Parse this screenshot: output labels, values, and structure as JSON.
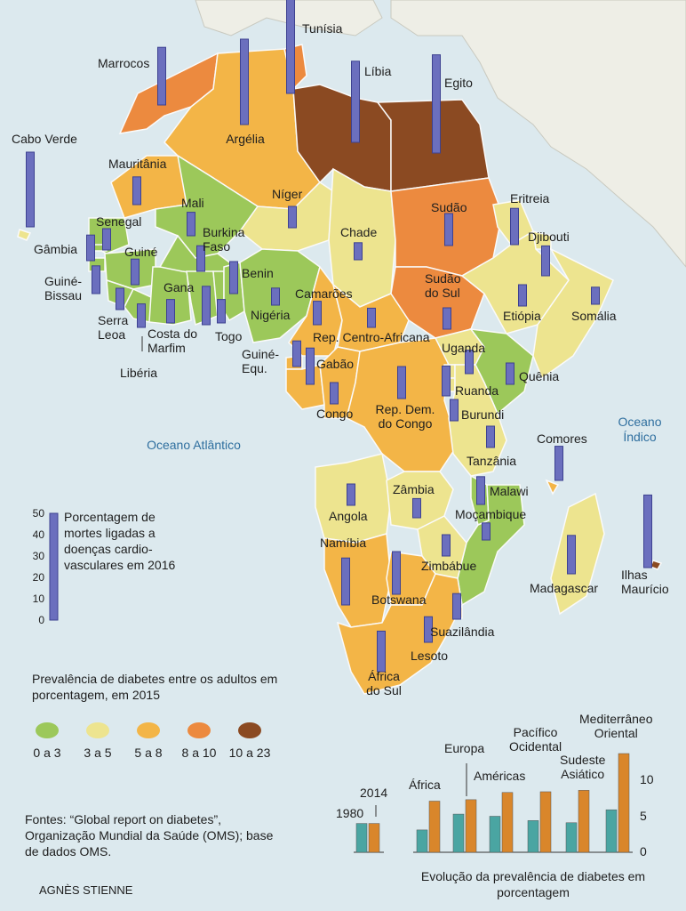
{
  "colors": {
    "ocean": "#dce9ee",
    "land_other": "#eeeee6",
    "bar": "#6b6fbe",
    "bar_edge": "#3d4190",
    "c_0_3": "#9cc85a",
    "c_3_5": "#ede48f",
    "c_5_8": "#f3b547",
    "c_8_10": "#ec8a3f",
    "c_10_23": "#8b4a22",
    "bar_1980": "#4aa5a2",
    "bar_2014": "#d9862b"
  },
  "countries": [
    {
      "name": "Marrocos",
      "cvd": 27,
      "class": "8_10"
    },
    {
      "name": "Argélia",
      "cvd": 40,
      "class": "5_8"
    },
    {
      "name": "Tunísia",
      "cvd": 45,
      "class": "8_10"
    },
    {
      "name": "Líbia",
      "cvd": 38,
      "class": "10_23"
    },
    {
      "name": "Egito",
      "cvd": 46,
      "class": "10_23"
    },
    {
      "name": "Cabo Verde",
      "cvd": 35,
      "class": "3_5"
    },
    {
      "name": "Mauritânia",
      "cvd": 13,
      "class": "5_8"
    },
    {
      "name": "Senegal",
      "cvd": 10,
      "class": "0_3"
    },
    {
      "name": "Gâmbia",
      "cvd": 12,
      "class": "0_3"
    },
    {
      "name": "Guiné-Bissau",
      "cvd": 13,
      "class": "0_3"
    },
    {
      "name": "Guiné",
      "cvd": 12,
      "class": "0_3"
    },
    {
      "name": "Mali",
      "cvd": 11,
      "class": "0_3"
    },
    {
      "name": "Serra Leoa",
      "cvd": 10,
      "class": "0_3"
    },
    {
      "name": "Libéria",
      "cvd": 11,
      "class": "0_3"
    },
    {
      "name": "Costa do Marfim",
      "cvd": 11,
      "class": "0_3"
    },
    {
      "name": "Burkina Faso",
      "cvd": 12,
      "class": "0_3"
    },
    {
      "name": "Gana",
      "cvd": 18,
      "class": "0_3"
    },
    {
      "name": "Togo",
      "cvd": 11,
      "class": "0_3"
    },
    {
      "name": "Benin",
      "cvd": 15,
      "class": "0_3"
    },
    {
      "name": "Níger",
      "cvd": 10,
      "class": "3_5"
    },
    {
      "name": "Nigéria",
      "cvd": 8,
      "class": "0_3"
    },
    {
      "name": "Chade",
      "cvd": 8,
      "class": "3_5"
    },
    {
      "name": "Camarões",
      "cvd": 11,
      "class": "5_8"
    },
    {
      "name": "Rep. Centro-Africana",
      "cvd": 9,
      "class": "5_8"
    },
    {
      "name": "Sudão",
      "cvd": 15,
      "class": "8_10"
    },
    {
      "name": "Sudão do Sul",
      "cvd": 10,
      "class": "8_10"
    },
    {
      "name": "Eritreia",
      "cvd": 17,
      "class": "3_5"
    },
    {
      "name": "Djibouti",
      "cvd": 14,
      "class": "3_5"
    },
    {
      "name": "Etiópia",
      "cvd": 10,
      "class": "3_5"
    },
    {
      "name": "Somália",
      "cvd": 8,
      "class": "3_5"
    },
    {
      "name": "Guiné-Equ.",
      "cvd": 12,
      "class": "5_8"
    },
    {
      "name": "Gabão",
      "cvd": 17,
      "class": "5_8"
    },
    {
      "name": "Congo",
      "cvd": 10,
      "class": "5_8"
    },
    {
      "name": "Rep. Dem. do Congo",
      "cvd": 15,
      "class": "5_8"
    },
    {
      "name": "Uganda",
      "cvd": 11,
      "class": "3_5"
    },
    {
      "name": "Quênia",
      "cvd": 10,
      "class": "0_3"
    },
    {
      "name": "Ruanda",
      "cvd": 14,
      "class": "3_5"
    },
    {
      "name": "Burundi",
      "cvd": 10,
      "class": "3_5"
    },
    {
      "name": "Tanzânia",
      "cvd": 10,
      "class": "3_5"
    },
    {
      "name": "Comores",
      "cvd": 16,
      "class": "5_8"
    },
    {
      "name": "Angola",
      "cvd": 10,
      "class": "3_5"
    },
    {
      "name": "Zâmbia",
      "cvd": 9,
      "class": "3_5"
    },
    {
      "name": "Malawi",
      "cvd": 13,
      "class": "0_3"
    },
    {
      "name": "Moçambique",
      "cvd": 8,
      "class": "0_3"
    },
    {
      "name": "Namíbia",
      "cvd": 22,
      "class": "5_8"
    },
    {
      "name": "Zimbábue",
      "cvd": 10,
      "class": "3_5"
    },
    {
      "name": "Botswana",
      "cvd": 20,
      "class": "5_8"
    },
    {
      "name": "Madagascar",
      "cvd": 18,
      "class": "3_5"
    },
    {
      "name": "Ilhas Maurício",
      "cvd": 34,
      "class": "10_23"
    },
    {
      "name": "Suazilândia",
      "cvd": 12,
      "class": "5_8"
    },
    {
      "name": "Lesoto",
      "cvd": 12,
      "class": "5_8"
    },
    {
      "name": "África do Sul",
      "cvd": 19,
      "class": "5_8"
    }
  ],
  "oceans": {
    "atlantico": "Oceano Atlântico",
    "indico": "Oceano Índico"
  },
  "cvd_legend": {
    "title": "Porcentagem de mortes ligadas a doenças cardio-vasculares em 2016",
    "ticks": [
      "50",
      "40",
      "30",
      "20",
      "10",
      "0"
    ]
  },
  "diabetes_legend": {
    "title": "Prevalência de diabetes entre os adultos em porcentagem, em 2015",
    "classes": [
      {
        "label": "0 a 3",
        "color": "#9cc85a"
      },
      {
        "label": "3 a 5",
        "color": "#ede48f"
      },
      {
        "label": "5 a 8",
        "color": "#f3b547"
      },
      {
        "label": "8 a 10",
        "color": "#ec8a3f"
      },
      {
        "label": "10 a 23",
        "color": "#8b4a22"
      }
    ]
  },
  "sources": "Fontes: “Global report on diabetes”, Organização Mundial da Saúde (OMS); base de dados OMS.",
  "author": "AGNÈS STIENNE",
  "chart_data": {
    "type": "bar",
    "title": "Evolução da prevalência de diabetes em porcentagem",
    "categories": [
      "África",
      "Europa",
      "Américas",
      "Pacífico Ocidental",
      "Sudeste Asiático",
      "Mediterrâneo Oriental"
    ],
    "series": [
      {
        "name": "1980",
        "values": [
          3.1,
          5.3,
          5.0,
          4.4,
          4.1,
          5.9
        ]
      },
      {
        "name": "2014",
        "values": [
          7.1,
          7.3,
          8.3,
          8.4,
          8.6,
          13.7
        ]
      }
    ],
    "ylim": [
      0,
      15
    ],
    "yticks": [
      "0",
      "5",
      "10"
    ]
  }
}
